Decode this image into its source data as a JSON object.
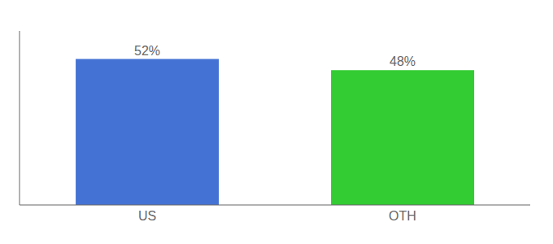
{
  "chart_data": {
    "type": "bar",
    "categories": [
      "US",
      "OTH"
    ],
    "values": [
      52,
      48
    ],
    "value_labels": [
      "52%",
      "48%"
    ],
    "data_labels": true,
    "colors": [
      "#4472d4",
      "#33cc33"
    ],
    "ylim": [
      0,
      62
    ],
    "tick_labels": "x",
    "grid": false
  }
}
